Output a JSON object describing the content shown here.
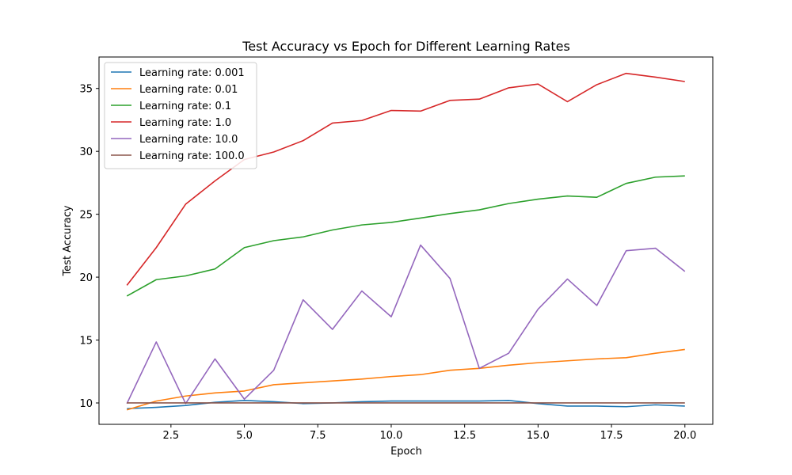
{
  "chart_data": {
    "type": "line",
    "title": "Test Accuracy vs Epoch for Different Learning Rates",
    "xlabel": "Epoch",
    "ylabel": "Test Accuracy",
    "xlim": [
      0.05,
      20.95
    ],
    "ylim": [
      8.3,
      37.5
    ],
    "xticks": [
      2.5,
      5.0,
      7.5,
      10.0,
      12.5,
      15.0,
      17.5,
      20.0
    ],
    "xtick_labels": [
      "2.5",
      "5.0",
      "7.5",
      "10.0",
      "12.5",
      "15.0",
      "17.5",
      "20.0"
    ],
    "yticks": [
      10,
      15,
      20,
      25,
      30,
      35
    ],
    "ytick_labels": [
      "10",
      "15",
      "20",
      "25",
      "30",
      "35"
    ],
    "grid": false,
    "legend_position": "top-left",
    "x": [
      1,
      2,
      3,
      4,
      5,
      6,
      7,
      8,
      9,
      10,
      11,
      12,
      13,
      14,
      15,
      16,
      17,
      18,
      19,
      20
    ],
    "series": [
      {
        "name": "Learning rate: 0.001",
        "color": "#1f77b4",
        "values": [
          9.55,
          9.65,
          9.8,
          10.05,
          10.2,
          10.1,
          9.95,
          10.0,
          10.1,
          10.15,
          10.15,
          10.15,
          10.15,
          10.2,
          9.95,
          9.75,
          9.75,
          9.7,
          9.85,
          9.75
        ]
      },
      {
        "name": "Learning rate: 0.01",
        "color": "#ff7f0e",
        "values": [
          9.45,
          10.15,
          10.55,
          10.8,
          10.95,
          11.45,
          11.6,
          11.75,
          11.9,
          12.1,
          12.25,
          12.6,
          12.75,
          13.0,
          13.2,
          13.35,
          13.5,
          13.6,
          13.95,
          14.25
        ]
      },
      {
        "name": "Learning rate: 0.1",
        "color": "#2ca02c",
        "values": [
          18.5,
          19.8,
          20.1,
          20.65,
          22.35,
          22.9,
          23.2,
          23.75,
          24.15,
          24.35,
          24.7,
          25.05,
          25.35,
          25.85,
          26.2,
          26.45,
          26.35,
          27.45,
          27.95,
          28.05
        ]
      },
      {
        "name": "Learning rate: 1.0",
        "color": "#d62728",
        "values": [
          19.35,
          22.35,
          25.8,
          27.65,
          29.35,
          29.95,
          30.85,
          32.25,
          32.45,
          33.25,
          33.2,
          34.05,
          34.15,
          35.05,
          35.35,
          33.95,
          35.3,
          36.2,
          35.9,
          35.55
        ]
      },
      {
        "name": "Learning rate: 10.0",
        "color": "#9467bd",
        "values": [
          9.95,
          14.85,
          9.95,
          13.5,
          10.3,
          12.6,
          18.2,
          15.85,
          18.9,
          16.85,
          22.55,
          19.9,
          12.75,
          13.95,
          17.45,
          19.85,
          17.75,
          22.1,
          22.3,
          20.45
        ]
      },
      {
        "name": "Learning rate: 100.0",
        "color": "#8c564b",
        "values": [
          10.0,
          10.0,
          10.0,
          10.0,
          10.0,
          10.0,
          10.0,
          10.0,
          10.0,
          10.0,
          10.0,
          10.0,
          10.0,
          10.0,
          10.0,
          10.0,
          10.0,
          10.0,
          10.0,
          10.0
        ]
      }
    ]
  }
}
